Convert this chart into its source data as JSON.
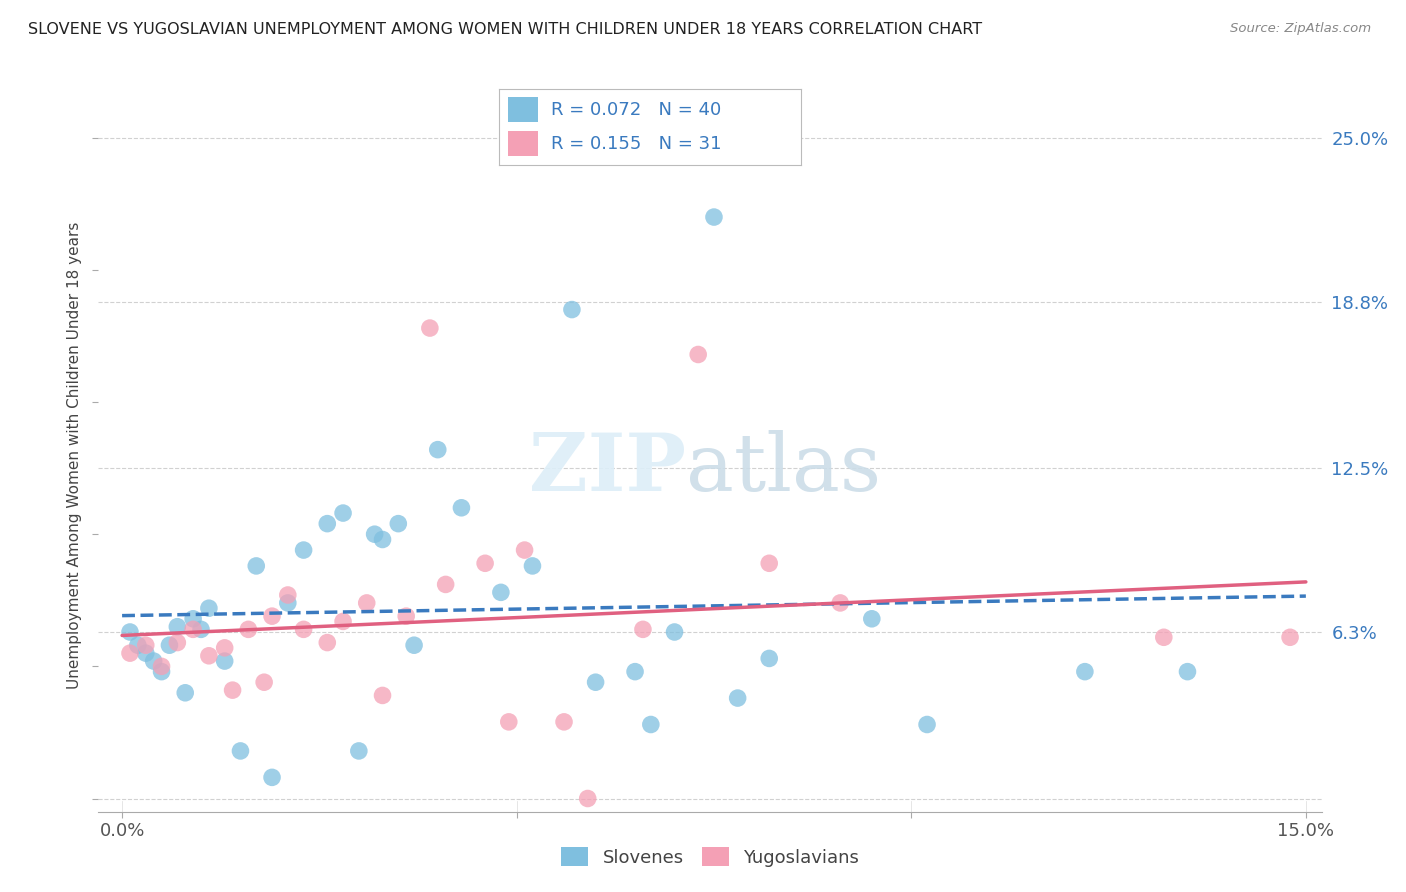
{
  "title": "SLOVENE VS YUGOSLAVIAN UNEMPLOYMENT AMONG WOMEN WITH CHILDREN UNDER 18 YEARS CORRELATION CHART",
  "source": "Source: ZipAtlas.com",
  "ylabel": "Unemployment Among Women with Children Under 18 years",
  "R1": 0.072,
  "N1": 40,
  "R2": 0.155,
  "N2": 31,
  "color_blue": "#7fbfdf",
  "color_pink": "#f4a0b5",
  "color_blue_line": "#3a7abf",
  "color_pink_line": "#e06080",
  "color_blue_text": "#3a7abf",
  "legend_label1": "Slovenes",
  "legend_label2": "Yugoslavians",
  "xlim": [
    0.0,
    0.15
  ],
  "ylim": [
    0.0,
    0.265
  ],
  "x_ticks": [
    0.0,
    0.05,
    0.1,
    0.15
  ],
  "x_tick_labels": [
    "0.0%",
    "",
    "",
    "15.0%"
  ],
  "y_ticks": [
    0.0,
    0.063,
    0.125,
    0.188,
    0.25
  ],
  "y_tick_labels_right": [
    "",
    "6.3%",
    "12.5%",
    "18.8%",
    "25.0%"
  ],
  "background_color": "#ffffff",
  "grid_color": "#cccccc",
  "title_color": "#222222",
  "blue_scatter_x": [
    0.001,
    0.002,
    0.003,
    0.004,
    0.005,
    0.006,
    0.007,
    0.008,
    0.009,
    0.01,
    0.011,
    0.013,
    0.015,
    0.017,
    0.019,
    0.021,
    0.023,
    0.026,
    0.028,
    0.03,
    0.032,
    0.033,
    0.035,
    0.037,
    0.04,
    0.043,
    0.048,
    0.052,
    0.057,
    0.06,
    0.065,
    0.067,
    0.07,
    0.075,
    0.078,
    0.082,
    0.095,
    0.102,
    0.122,
    0.135
  ],
  "blue_scatter_y": [
    0.063,
    0.058,
    0.055,
    0.052,
    0.048,
    0.058,
    0.065,
    0.04,
    0.068,
    0.064,
    0.072,
    0.052,
    0.018,
    0.088,
    0.008,
    0.074,
    0.094,
    0.104,
    0.108,
    0.018,
    0.1,
    0.098,
    0.104,
    0.058,
    0.132,
    0.11,
    0.078,
    0.088,
    0.185,
    0.044,
    0.048,
    0.028,
    0.063,
    0.22,
    0.038,
    0.053,
    0.068,
    0.028,
    0.048,
    0.048
  ],
  "pink_scatter_x": [
    0.001,
    0.003,
    0.005,
    0.007,
    0.009,
    0.011,
    0.013,
    0.014,
    0.016,
    0.018,
    0.019,
    0.021,
    0.023,
    0.026,
    0.028,
    0.031,
    0.033,
    0.036,
    0.039,
    0.041,
    0.046,
    0.049,
    0.051,
    0.056,
    0.059,
    0.066,
    0.073,
    0.082,
    0.091,
    0.132,
    0.148
  ],
  "pink_scatter_y": [
    0.055,
    0.058,
    0.05,
    0.059,
    0.064,
    0.054,
    0.057,
    0.041,
    0.064,
    0.044,
    0.069,
    0.077,
    0.064,
    0.059,
    0.067,
    0.074,
    0.039,
    0.069,
    0.178,
    0.081,
    0.089,
    0.029,
    0.094,
    0.029,
    0.0,
    0.064,
    0.168,
    0.089,
    0.074,
    0.061,
    0.061
  ]
}
